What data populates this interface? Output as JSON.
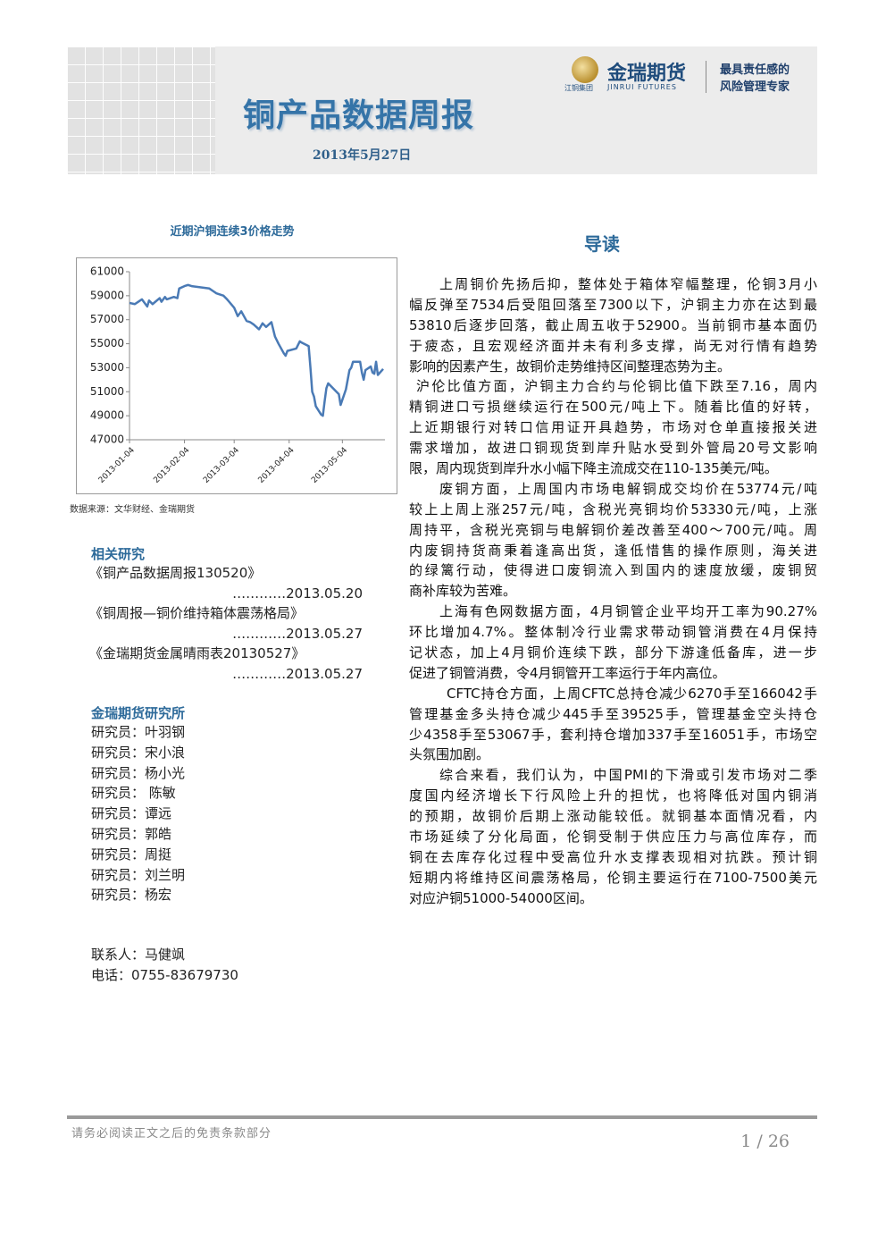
{
  "header": {
    "title": "铜产品数据周报",
    "date": "2013年5月27日",
    "logo_name": "金瑞期货",
    "logo_group": "江铜集团",
    "logo_sub": "JINRUI FUTURES",
    "slogan": [
      "最具责任感的",
      "风险管理专家"
    ]
  },
  "chart_data": {
    "type": "line",
    "title": "近期沪铜连续3价格走势",
    "color": "#4a7ab5",
    "x": [
      "2013-01-04",
      "2013-01-07",
      "2013-01-09",
      "2013-01-11",
      "2013-01-14",
      "2013-01-15",
      "2013-01-17",
      "2013-01-21",
      "2013-01-22",
      "2013-01-24",
      "2013-01-25",
      "2013-01-29",
      "2013-01-31",
      "2013-02-01",
      "2013-02-04",
      "2013-02-06",
      "2013-02-08",
      "2013-02-18",
      "2013-02-20",
      "2013-02-22",
      "2013-02-26",
      "2013-02-28",
      "2013-03-04",
      "2013-03-06",
      "2013-03-08",
      "2013-03-11",
      "2013-03-13",
      "2013-03-15",
      "2013-03-18",
      "2013-03-20",
      "2013-03-22",
      "2013-03-25",
      "2013-03-27",
      "2013-03-29",
      "2013-04-01",
      "2013-04-02",
      "2013-04-03",
      "2013-04-08",
      "2013-04-09",
      "2013-04-10",
      "2013-04-11",
      "2013-04-15",
      "2013-04-16",
      "2013-04-17",
      "2013-04-18",
      "2013-04-19",
      "2013-04-22",
      "2013-04-23",
      "2013-04-24",
      "2013-04-25",
      "2013-04-26",
      "2013-05-02",
      "2013-05-03",
      "2013-05-06",
      "2013-05-07",
      "2013-05-08",
      "2013-05-09",
      "2013-05-10",
      "2013-05-13",
      "2013-05-14",
      "2013-05-15",
      "2013-05-16",
      "2013-05-17",
      "2013-05-20",
      "2013-05-21",
      "2013-05-22",
      "2013-05-23",
      "2013-05-24",
      "2013-05-27"
    ],
    "values": [
      58400,
      58300,
      58500,
      58700,
      58100,
      58600,
      58300,
      58800,
      58500,
      58900,
      58700,
      58900,
      58800,
      59600,
      59800,
      59900,
      59800,
      59600,
      59400,
      59200,
      59000,
      58700,
      58000,
      57300,
      57700,
      56900,
      56800,
      56600,
      56200,
      56700,
      56400,
      56800,
      55600,
      55000,
      54200,
      54000,
      54400,
      54600,
      54900,
      55200,
      55100,
      54800,
      53000,
      51000,
      50600,
      49800,
      49100,
      49000,
      50200,
      51300,
      51700,
      50800,
      49900,
      51200,
      52000,
      52800,
      53000,
      53500,
      53500,
      53500,
      52600,
      52000,
      52800,
      53100,
      52600,
      52500,
      53500,
      52400,
      52900
    ],
    "xlim": [
      "2013-01-04",
      "2013-05-28"
    ],
    "xticks": [
      "2013-01-04",
      "2013-02-04",
      "2013-03-04",
      "2013-04-04",
      "2013-05-04"
    ],
    "ylim": [
      47000,
      61000
    ],
    "yticks": [
      47000,
      49000,
      51000,
      53000,
      55000,
      57000,
      59000,
      61000
    ],
    "grid": false,
    "source": "数据来源：文华财经、金瑞期货"
  },
  "related": {
    "heading": "相关研究",
    "items": [
      {
        "title": "《铜产品数据周报130520》",
        "date": "…………2013.05.20"
      },
      {
        "title": "《铜周报—铜价维持箱体震荡格局》",
        "date": "…………2013.05.27"
      },
      {
        "title": "《金瑞期货金属晴雨表20130527》",
        "date": "…………2013.05.27"
      }
    ]
  },
  "institute": {
    "heading": "金瑞期货研究所",
    "researchers": [
      "研究员：叶羽钢",
      "研究员：宋小浪",
      "研究员：杨小光",
      "研究员： 陈敏",
      "研究员：谭远",
      "研究员：郭皓",
      "研究员：周挺",
      "研究员：刘兰明",
      "研究员：杨宏"
    ]
  },
  "contact": {
    "person": "联系人：马健飒",
    "phone": "电话：0755-83679730"
  },
  "intro": {
    "heading": "导读",
    "paragraphs": [
      [
        "上周铜价先扬后抑，整体处于箱体窄幅整理，伦铜3月小",
        "幅反弹至7534后受阻回落至7300以下，沪铜主力亦在达到最",
        "53810后逐步回落，截止周五收于52900。当前铜市基本面仍",
        "于疲态，且宏观经济面并未有利多支撑，尚无对行情有趋势",
        "影响的因素产生，故铜价走势维持区间整理态势为主。"
      ],
      [
        "沪伦比值方面，沪铜主力合约与伦铜比值下跌至7.16，周内",
        "精铜进口亏损继续运行在500元/吨上下。随着比值的好转，",
        "上近期银行对转口信用证开具趋势，市场对仓单直接报关进",
        "需求增加，故进口铜现货到岸升贴水受到外管局20号文影响",
        "限，周内现货到岸升水小幅下降主流成交在110-135美元/吨。"
      ],
      [
        "废铜方面，上周国内市场电解铜成交均价在53774元/吨",
        "较上上周上涨257元/吨，含税光亮铜均价53330元/吨，上涨",
        "周持平，含税光亮铜与电解铜价差改善至400～700元/吨。周",
        "内废铜持货商秉着逢高出货，逢低惜售的操作原则，海关进",
        "的绿篱行动，使得进口废铜流入到国内的速度放缓，废铜贸",
        "商补库较为苦难。"
      ],
      [
        "上海有色网数据方面，4月铜管企业平均开工率为90.27%",
        "环比增加4.7%。整体制冷行业需求带动铜管消费在4月保持",
        "记状态，加上4月铜价连续下跌，部分下游逢低备库，进一步",
        "促进了铜管消费，令4月铜管开工率运行于年内高位。"
      ],
      [
        "CFTC持仓方面，上周CFTC总持仓减少6270手至166042手",
        "管理基金多头持仓减少445手至39525手，管理基金空头持仓",
        "少4358手至53067手，套利持仓增加337手至16051手，市场空",
        "头氛围加剧。"
      ],
      [
        "综合来看，我们认为，中国PMI的下滑或引发市场对二季",
        "度国内经济增长下行风险上升的担忧，也将降低对国内铜消",
        "的预期，故铜价后期上涨动能较低。就铜基本面情况看，内",
        "市场延续了分化局面，伦铜受制于供应压力与高位库存，而",
        "铜在去库存化过程中受高位升水支撑表现相对抗跌。预计铜",
        "短期内将维持区间震荡格局，伦铜主要运行在7100-7500美元",
        "对应沪铜51000-54000区间。"
      ]
    ]
  },
  "footer": {
    "disclaimer": "请务必阅读正文之后的免责条款部分",
    "page": "1 / 26"
  }
}
